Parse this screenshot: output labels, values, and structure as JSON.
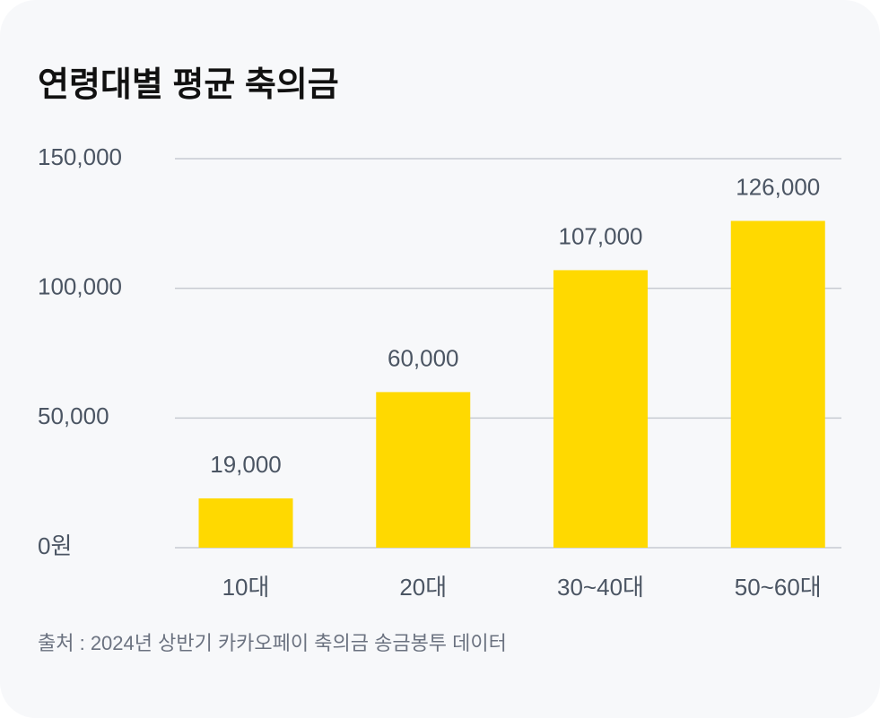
{
  "chart_data": {
    "type": "bar",
    "title": "연령대별 평균 축의금",
    "categories": [
      "10대",
      "20대",
      "30~40대",
      "50~60대"
    ],
    "values": [
      19000,
      60000,
      107000,
      126000
    ],
    "value_labels": [
      "19,000",
      "60,000",
      "107,000",
      "126,000"
    ],
    "color": "#ffd900",
    "ylim": [
      0,
      150000
    ],
    "yticks": [
      {
        "value": 0,
        "label": "0원"
      },
      {
        "value": 50000,
        "label": "50,000"
      },
      {
        "value": 100000,
        "label": "100,000"
      },
      {
        "value": 150000,
        "label": "150,000"
      }
    ],
    "grid": true,
    "source": "출처 : 2024년 상반기 카카오페이 축의금 송금봉투 데이터"
  }
}
